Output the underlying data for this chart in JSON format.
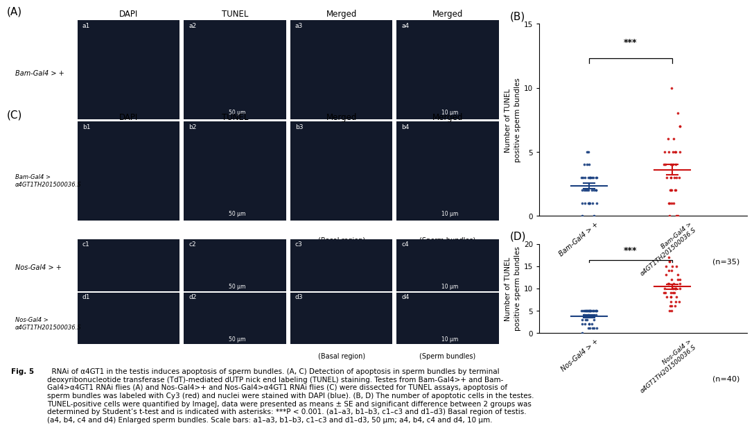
{
  "panel_B": {
    "title": "(B)",
    "ylabel": "Number of TUNEL\npositive sperm bundles",
    "ylim": [
      0,
      15
    ],
    "yticks": [
      0,
      5,
      10,
      15
    ],
    "significance": "***",
    "n_label": "(n=35)",
    "group1_color": "#1a4080",
    "group2_color": "#cc1111",
    "xtick1": "Bam-Gal4 > +",
    "xtick2_line1": "Bam-Gal4 >",
    "xtick2_line2": "α4GT1",
    "xtick2_sup": "TH201500036.S",
    "group1_data": [
      0,
      0,
      1,
      1,
      1,
      1,
      1,
      1,
      1,
      1,
      2,
      2,
      2,
      2,
      2,
      2,
      2,
      2,
      2,
      3,
      3,
      3,
      3,
      3,
      3,
      3,
      3,
      3,
      3,
      3,
      4,
      4,
      4,
      5,
      5
    ],
    "group2_data": [
      0,
      0,
      0,
      1,
      1,
      1,
      1,
      2,
      2,
      2,
      2,
      2,
      3,
      3,
      3,
      3,
      3,
      3,
      4,
      4,
      4,
      4,
      4,
      5,
      5,
      5,
      5,
      5,
      5,
      6,
      6,
      7,
      7,
      8,
      10
    ]
  },
  "panel_D": {
    "title": "(D)",
    "ylabel": "Number of TUNEL\npositive sperm bundles",
    "ylim": [
      0,
      20
    ],
    "yticks": [
      0,
      5,
      10,
      15,
      20
    ],
    "significance": "***",
    "n_label": "(n=40)",
    "group1_color": "#1a4080",
    "group2_color": "#cc1111",
    "xtick1": "Nos-Gal4 > +",
    "xtick2_line1": "Nos-Gal4 >",
    "xtick2_line2": "α4GT1",
    "xtick2_sup": "TH201500036.S",
    "group1_data": [
      0,
      1,
      1,
      1,
      1,
      1,
      2,
      2,
      2,
      2,
      2,
      3,
      3,
      3,
      3,
      4,
      4,
      4,
      5,
      5,
      5,
      5,
      5,
      5,
      5,
      5,
      5,
      5,
      5,
      5,
      5,
      5,
      5,
      5,
      5,
      5,
      5,
      5,
      5,
      5
    ],
    "group2_data": [
      5,
      5,
      6,
      6,
      6,
      7,
      7,
      7,
      8,
      8,
      8,
      8,
      9,
      9,
      9,
      9,
      9,
      10,
      10,
      10,
      10,
      10,
      10,
      11,
      11,
      11,
      11,
      12,
      12,
      12,
      13,
      13,
      14,
      14,
      15,
      15,
      15,
      16,
      16,
      17
    ]
  },
  "row_label_A1": "Bam-Gal4 > +",
  "row_label_A2_l1": "Bam-Gal4 >",
  "row_label_A2_l2": "α4GT1",
  "row_label_A2_sup": "TH201500036.S",
  "row_label_C1": "Nos-Gal4 > +",
  "row_label_C2_l1": "Nos-Gal4 >",
  "row_label_C2_l2": "α4GT1",
  "row_label_C2_sup": "TH201500036.S",
  "col_headers": [
    "DAPI",
    "TUNEL",
    "Merged",
    "Merged"
  ],
  "sub_labels_A": [
    [
      "a1",
      "a2",
      "a3",
      "a4"
    ],
    [
      "b1",
      "b2",
      "b3",
      "b4"
    ]
  ],
  "sub_labels_C": [
    [
      "c1",
      "c2",
      "c3",
      "c4"
    ],
    [
      "d1",
      "d2",
      "d3",
      "d4"
    ]
  ],
  "scale_bar_50": "50 μm",
  "scale_bar_10": "10 μm",
  "basal_label": "(Basal region)",
  "sperm_label": "(Sperm bundles)",
  "panel_label_A": "(A)",
  "panel_label_B": "(B)",
  "panel_label_C": "(C)",
  "panel_label_D": "(D)",
  "caption_bold": "Fig. 5",
  "caption_text": "  RNAi of α4GT1 in the testis induces apoptosis of sperm bundles. (A, C) Detection of apoptosis in sperm bundles by terminal\ndeoxyribonucleotide transferase (TdT)-mediated dUTP nick end labeling (TUNEL) staining. Testes from Bam-Gal4>+ and Bam-\nGal4>α4GT1 RNAi flies (A) and Nos-Gal4>+ and Nos-Gal4>α4GT1 RNAi flies (C) were dissected for TUNEL assays, apoptosis of\nsperm bundles was labeled with Cy3 (red) and nuclei were stained with DAPI (blue). (B, D) The number of apoptotic cells in the testes.\nTUNEL-positive cells were quantified by ImageJ, data were presented as means ± SE and significant difference between 2 groups was\ndetermined by Student’s t-test and is indicated with asterisks: ***P < 0.001. (a1–a3, b1–b3, c1–c3 and d1–d3) Basal region of testis.\n(a4, b4, c4 and d4) Enlarged sperm bundles. Scale bars: a1–a3, b1–b3, c1–c3 and d1–d3, 50 μm; a4, b4, c4 and d4, 10 μm.",
  "bg_color": "#ffffff",
  "img_bg_color": "#0d1117",
  "img_cell_color": "#12192a"
}
